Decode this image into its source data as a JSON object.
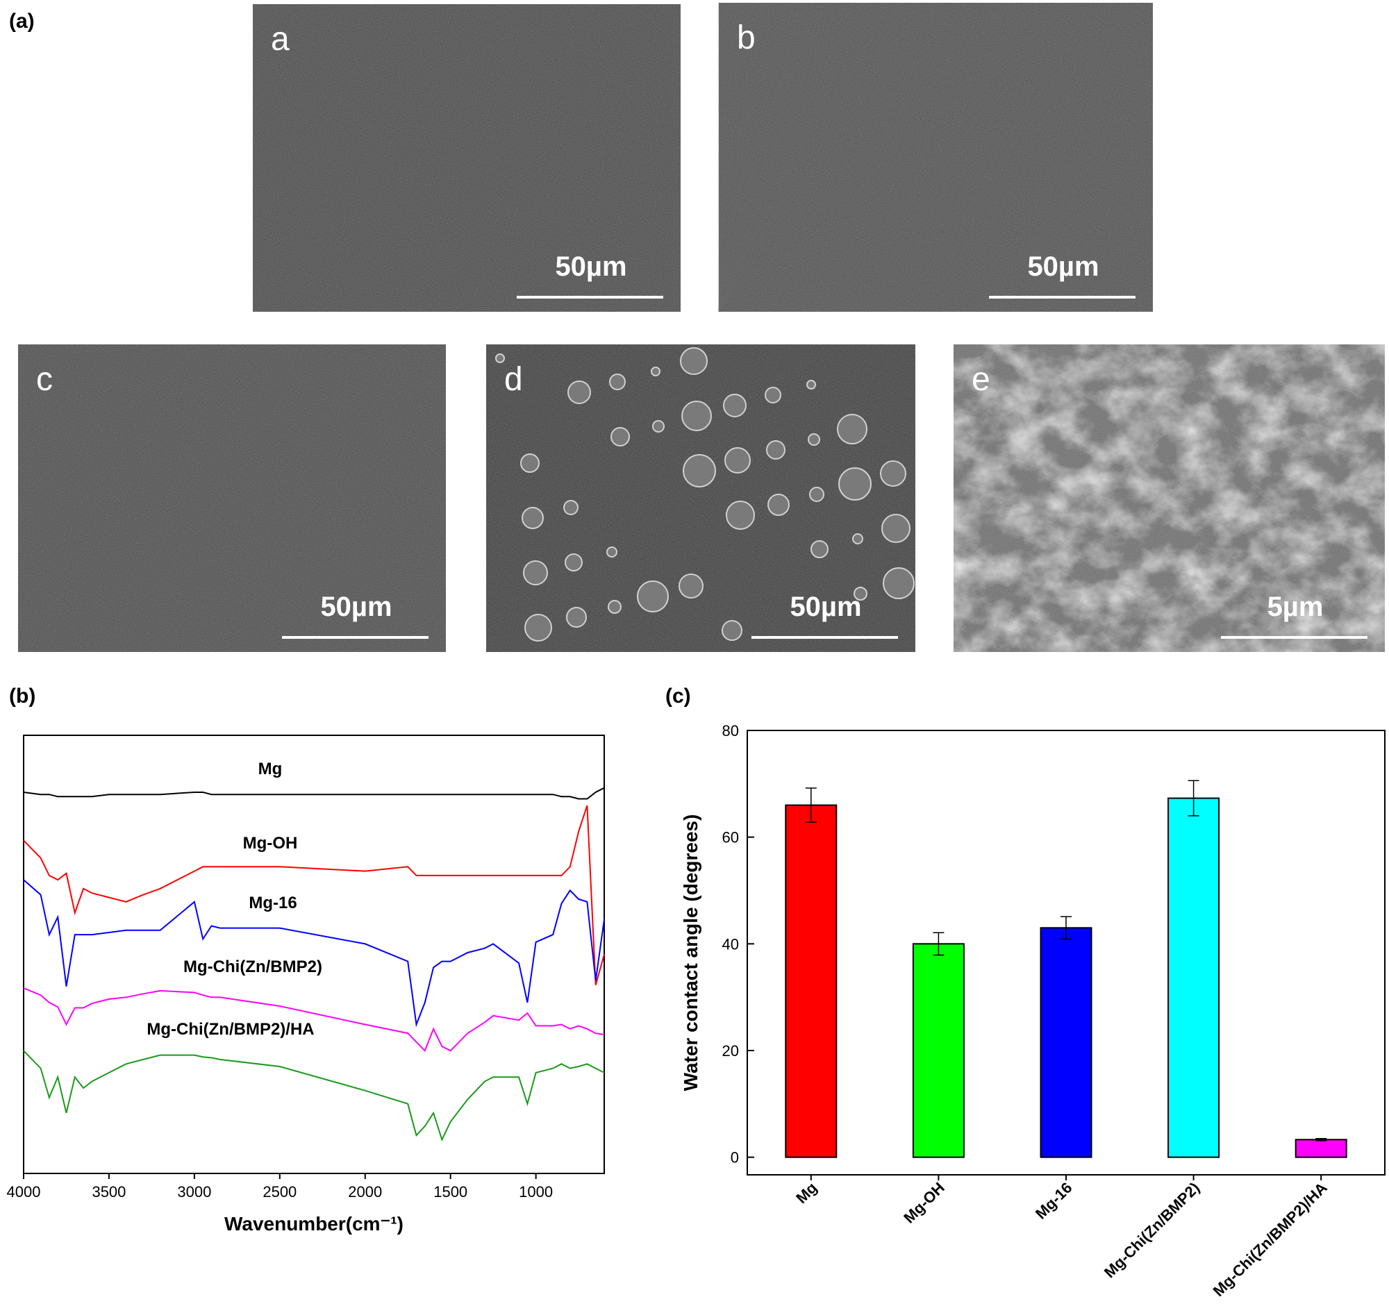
{
  "panel_labels": [
    "(a)",
    "(b)",
    "(c)"
  ],
  "sem_images": [
    {
      "letter": "a",
      "scale_bar": "50µm"
    },
    {
      "letter": "b",
      "scale_bar": "50µm"
    },
    {
      "letter": "c",
      "scale_bar": "50µm"
    },
    {
      "letter": "d",
      "scale_bar": "50µm"
    },
    {
      "letter": "e",
      "scale_bar": "5µm"
    }
  ],
  "chart_data": [
    {
      "type": "line",
      "x_label": "Wavenumber(cm⁻¹)",
      "x": [
        4000,
        3900,
        3850,
        3800,
        3750,
        3700,
        3650,
        3600,
        3500,
        3400,
        3300,
        3200,
        3000,
        2950,
        2900,
        2850,
        2500,
        2000,
        1750,
        1700,
        1650,
        1600,
        1550,
        1500,
        1400,
        1300,
        1250,
        1100,
        1050,
        1000,
        900,
        850,
        800,
        750,
        700,
        650,
        600
      ],
      "xlim": [
        4000,
        600
      ],
      "xticks": [
        4000,
        3500,
        3000,
        2500,
        2000,
        1500,
        1000
      ],
      "ylim": [
        0,
        100
      ],
      "series": [
        {
          "name": "Mg",
          "color": "#000000",
          "values": [
            87,
            86.5,
            86.5,
            86,
            86,
            86,
            86,
            86,
            86.5,
            86.5,
            86.5,
            86.5,
            87,
            87,
            86.5,
            86.5,
            86.5,
            86.5,
            86.5,
            86.5,
            86.5,
            86.5,
            86.5,
            86.5,
            86.5,
            86.5,
            86.5,
            86.5,
            86.5,
            86.5,
            86.5,
            86,
            86,
            85.5,
            85.5,
            87,
            88
          ]
        },
        {
          "name": "Mg-OH",
          "color": "#ff0000",
          "values": [
            76,
            72,
            68,
            67,
            68.5,
            59.5,
            65,
            64,
            63,
            62,
            63.6,
            65,
            69,
            70,
            70,
            70,
            70,
            69,
            70,
            68,
            68,
            68,
            68,
            68,
            68,
            68,
            68,
            68,
            68,
            68,
            68,
            68,
            70,
            78,
            84,
            43,
            50
          ]
        },
        {
          "name": "Mg-16",
          "color": "#0000ff",
          "values": [
            67,
            63.6,
            54.5,
            58.5,
            42.7,
            54.5,
            54.5,
            54.5,
            55,
            55.5,
            55.5,
            55.5,
            62,
            53.5,
            56.5,
            56,
            56,
            52.4,
            48.4,
            34,
            39,
            47,
            48.4,
            48.4,
            50.4,
            51.4,
            52.4,
            48,
            39,
            52.8,
            54.5,
            61.6,
            64.6,
            62.6,
            62,
            44,
            58
          ]
        },
        {
          "name": "Mg-Chi(Zn/BMP2)",
          "color": "#ff00ff",
          "values": [
            42.3,
            40.7,
            39,
            38,
            34,
            37.8,
            37.8,
            38.8,
            39.8,
            40.2,
            41,
            41.7,
            41.3,
            40.7,
            40.2,
            40.2,
            38.2,
            34,
            32,
            30,
            28,
            33,
            29,
            28,
            32,
            34.5,
            36,
            35,
            36.6,
            33.7,
            33.7,
            34,
            33,
            33.7,
            33,
            32,
            31.7
          ]
        },
        {
          "name": "Mg-Chi(Zn/BMP2)/HA",
          "color": "#1a9a1a",
          "values": [
            28,
            24,
            17.3,
            22,
            13.8,
            22,
            19.5,
            21,
            23,
            25,
            26,
            27,
            27,
            26.6,
            26.4,
            26,
            24.4,
            18.9,
            15.9,
            8.7,
            10.8,
            13.8,
            7.7,
            11.8,
            16.9,
            21,
            22,
            22,
            15.9,
            23,
            24,
            25,
            24,
            24.4,
            25,
            24,
            23
          ]
        }
      ]
    },
    {
      "type": "bar",
      "y_label": "Water contact angle (degrees)",
      "categories": [
        "Mg",
        "Mg-OH",
        "Mg-16",
        "Mg-Chi(Zn/BMP2)",
        "Mg-Chi(Zn/BMP2)/HA"
      ],
      "values": [
        66,
        40,
        43,
        67.3,
        3.3
      ],
      "errors": [
        3.2,
        2.1,
        2.1,
        3.3,
        0.2
      ],
      "colors": [
        "#ff0000",
        "#00ff00",
        "#0000ff",
        "#00ffff",
        "#ff00ff"
      ],
      "ylim": [
        -3.3,
        80
      ],
      "yticks": [
        0,
        20,
        40,
        60,
        80
      ]
    }
  ]
}
